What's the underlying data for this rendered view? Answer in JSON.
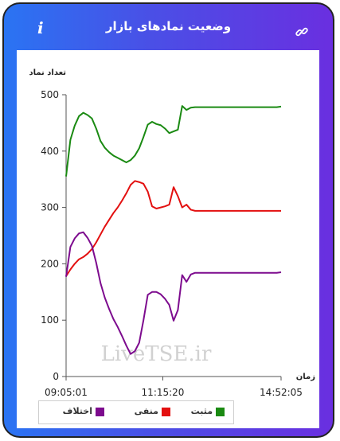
{
  "header": {
    "title": "وضعیت نمادهای بازار",
    "info_icon": "info-icon",
    "link_icon": "link-icon"
  },
  "colors": {
    "positive": "#1a8a12",
    "negative": "#e31010",
    "difference": "#7d0b8e",
    "accent_start": "#2a74f3",
    "accent_end": "#6a2fe0"
  },
  "watermark": "LiveTSE.ir",
  "chart_data": {
    "type": "line",
    "ylabel": "تعداد نماد",
    "xlabel": "زمان",
    "ylim": [
      0,
      500
    ],
    "yticks": [
      0,
      100,
      200,
      300,
      400,
      500
    ],
    "xlim_index": [
      0,
      100
    ],
    "xtick_labels": [
      "09:05:01",
      "11:15:20",
      "14:52:05"
    ],
    "xtick_positions": [
      0,
      45,
      100
    ],
    "x": [
      0,
      2,
      4,
      6,
      8,
      10,
      12,
      14,
      16,
      18,
      20,
      22,
      24,
      26,
      28,
      30,
      32,
      34,
      36,
      38,
      40,
      42,
      44,
      46,
      48,
      50,
      52,
      54,
      56,
      58,
      60,
      62,
      64,
      66,
      68,
      70,
      72,
      74,
      76,
      78,
      80,
      82,
      84,
      86,
      88,
      90,
      92,
      94,
      96,
      98,
      100
    ],
    "series": [
      {
        "name": "مثبت",
        "color": "#1a8a12",
        "values": [
          355,
          420,
          445,
          462,
          468,
          464,
          458,
          440,
          418,
          406,
          398,
          392,
          388,
          384,
          380,
          384,
          392,
          405,
          425,
          447,
          452,
          448,
          446,
          440,
          432,
          435,
          438,
          480,
          473,
          477,
          478,
          478,
          478,
          478,
          478,
          478,
          478,
          478,
          478,
          478,
          478,
          478,
          478,
          478,
          478,
          478,
          478,
          478,
          478,
          478,
          479
        ]
      },
      {
        "name": "منفی",
        "color": "#e31010",
        "values": [
          178,
          190,
          200,
          208,
          212,
          218,
          226,
          238,
          252,
          266,
          278,
          290,
          300,
          312,
          325,
          340,
          347,
          345,
          342,
          328,
          302,
          298,
          300,
          302,
          305,
          336,
          320,
          300,
          305,
          296,
          294,
          294,
          294,
          294,
          294,
          294,
          294,
          294,
          294,
          294,
          294,
          294,
          294,
          294,
          294,
          294,
          294,
          294,
          294,
          294,
          294
        ]
      },
      {
        "name": "اختلاف",
        "color": "#7d0b8e",
        "values": [
          177,
          230,
          245,
          254,
          256,
          246,
          232,
          202,
          166,
          140,
          120,
          102,
          88,
          72,
          55,
          40,
          45,
          60,
          100,
          145,
          150,
          150,
          146,
          138,
          127,
          99,
          118,
          180,
          168,
          181,
          184,
          184,
          184,
          184,
          184,
          184,
          184,
          184,
          184,
          184,
          184,
          184,
          184,
          184,
          184,
          184,
          184,
          184,
          184,
          184,
          185
        ]
      }
    ],
    "grid": false,
    "legend_position": "bottom-left"
  }
}
